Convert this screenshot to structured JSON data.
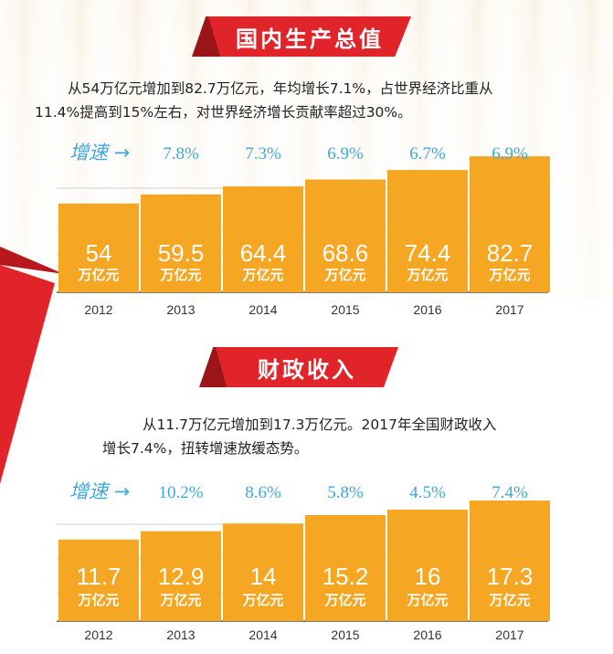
{
  "section1": {
    "title": "国内生产总值",
    "desc_line1": "从54万亿元增加到82.7万亿元，年均增长7.1%，占世界经济比重从",
    "desc_line2": "11.4%提高到15%左右，对世界经济增长贡献率超过30%。"
  },
  "section2": {
    "title": "财政收入",
    "desc_line1": "从11.7万亿元增加到17.3万亿元。2017年全国财政收入",
    "desc_line2": "增长7.4%，扭转增速放缓态势。"
  },
  "colors": {
    "bar": "#f5a623",
    "accent_red": "#e0242a",
    "growth_text": "#3fa9dc"
  },
  "chart_data": [
    {
      "type": "bar",
      "categories": [
        "2012",
        "2013",
        "2014",
        "2015",
        "2016",
        "2017"
      ],
      "values": [
        54,
        59.5,
        64.4,
        68.6,
        74.4,
        82.7
      ],
      "value_labels": [
        "54",
        "59.5",
        "64.4",
        "68.6",
        "74.4",
        "82.7"
      ],
      "unit": "万亿元",
      "growth_label": "增速 →",
      "growth": [
        "7.8%",
        "7.3%",
        "6.9%",
        "6.7%",
        "6.9%"
      ],
      "ylim": [
        0,
        90
      ],
      "grid": true
    },
    {
      "type": "bar",
      "categories": [
        "2012",
        "2013",
        "2014",
        "2015",
        "2016",
        "2017"
      ],
      "values": [
        11.7,
        12.9,
        14,
        15.2,
        16,
        17.3
      ],
      "value_labels": [
        "11.7",
        "12.9",
        "14",
        "15.2",
        "16",
        "17.3"
      ],
      "unit": "万亿元",
      "growth_label": "增速 →",
      "growth": [
        "10.2%",
        "8.6%",
        "5.8%",
        "4.5%",
        "7.4%"
      ],
      "ylim": [
        0,
        19
      ],
      "grid": true
    }
  ]
}
